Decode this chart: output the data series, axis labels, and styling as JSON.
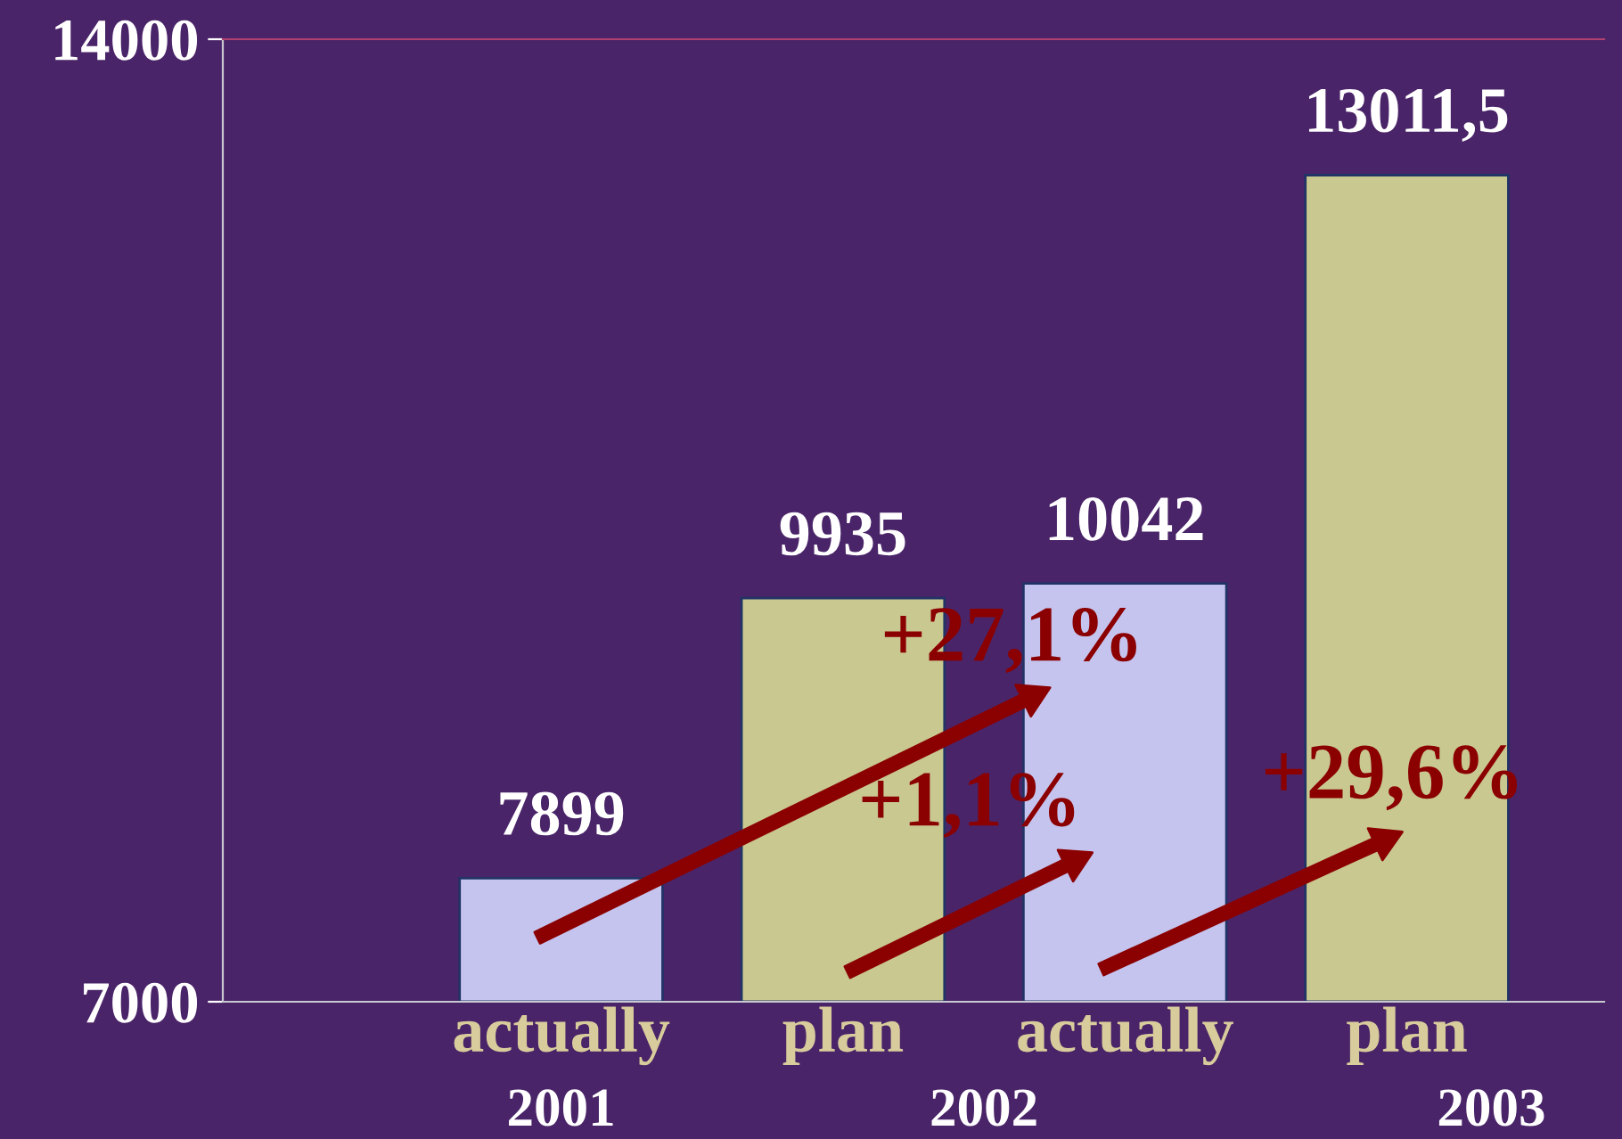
{
  "chart_data": {
    "type": "bar",
    "categories": [
      "actually",
      "plan",
      "actually",
      "plan"
    ],
    "values": [
      7899,
      9935,
      10042,
      13011.5
    ],
    "colors": [
      "#c4c4ee",
      "#c8c890",
      "#c4c4ee",
      "#c8c890"
    ],
    "value_labels": [
      "7899",
      "9935",
      "10042",
      "13011,5"
    ],
    "ylim": [
      7000,
      14000
    ],
    "yticks": [
      7000,
      14000
    ],
    "grid": false,
    "annotations": [
      "2001",
      "2002",
      "2003",
      "+27,1%",
      "+1,1%",
      "+29,6%"
    ]
  }
}
